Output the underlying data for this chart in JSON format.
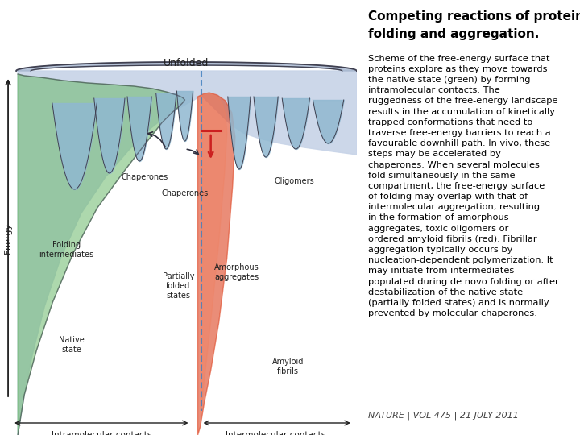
{
  "title_line1": "Competing reactions of protein",
  "title_line2": "folding and aggregation.",
  "title_color": "#000000",
  "title_fontsize": 11.0,
  "body_fontsize": 8.2,
  "footer": "NATURE | VOL 475 | 21 JULY 2011",
  "footer_fontsize": 8.0,
  "background_color": "#ffffff",
  "diagram_bg": "#c8d4e8",
  "green_color": "#6ab86a",
  "red_color": "#e05030",
  "blue_line_color": "#4080c0",
  "label_fontsize": 7.0,
  "axis_label_fontsize": 8.0,
  "chaperone_red": "#cc2020",
  "dark_outline": "#404050"
}
